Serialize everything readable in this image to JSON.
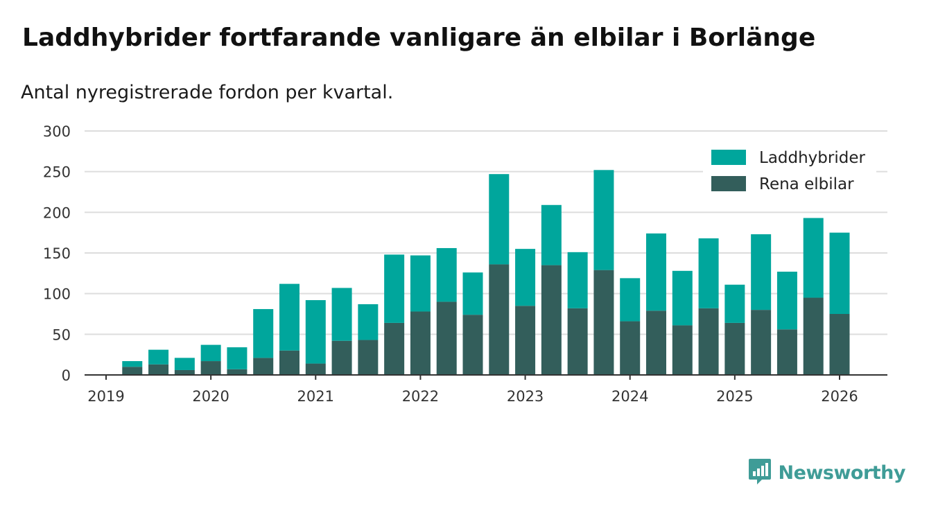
{
  "title": "Laddhybrider fortfarande vanligare än elbilar i Borlänge",
  "subtitle": "Antal nyregistrerade fordon per kvartal.",
  "brand": {
    "name": "Newsworthy",
    "icon": "newsworthy-logo-icon",
    "color": "#3f9c97"
  },
  "colors": {
    "laddhybrider": "#00a69c",
    "rena_elbilar": "#335e5b",
    "grid": "#dddddd",
    "axis": "#333333"
  },
  "chart_data": {
    "type": "bar",
    "stacked": true,
    "title": "Laddhybrider fortfarande vanligare än elbilar i Borlänge",
    "subtitle": "Antal nyregistrerade fordon per kvartal.",
    "xlabel": "",
    "ylabel": "",
    "ylim": [
      0,
      300
    ],
    "yticks": [
      0,
      50,
      100,
      150,
      200,
      250,
      300
    ],
    "xticks": [
      "2019",
      "2020",
      "2021",
      "2022",
      "2023",
      "2024",
      "2025",
      "2026"
    ],
    "legend_position": "top-right",
    "grid": true,
    "categories": [
      "2019 Q2",
      "2019 Q3",
      "2019 Q4",
      "2020 Q1",
      "2020 Q2",
      "2020 Q3",
      "2020 Q4",
      "2021 Q1",
      "2021 Q2",
      "2021 Q3",
      "2021 Q4",
      "2022 Q1",
      "2022 Q2",
      "2022 Q3",
      "2022 Q4",
      "2023 Q1",
      "2023 Q2",
      "2023 Q3",
      "2023 Q4",
      "2024 Q1",
      "2024 Q2",
      "2024 Q3",
      "2024 Q4",
      "2025 Q1",
      "2025 Q2",
      "2025 Q3",
      "2025 Q4",
      "2026 Q1"
    ],
    "series": [
      {
        "name": "Rena elbilar",
        "values": [
          10,
          13,
          6,
          17,
          7,
          21,
          30,
          14,
          42,
          43,
          64,
          78,
          90,
          74,
          136,
          85,
          135,
          82,
          129,
          66,
          79,
          61,
          82,
          64,
          80,
          56,
          95,
          75
        ]
      },
      {
        "name": "Laddhybrider",
        "values": [
          7,
          18,
          15,
          20,
          27,
          60,
          82,
          78,
          65,
          44,
          84,
          69,
          66,
          52,
          111,
          70,
          74,
          69,
          123,
          53,
          95,
          67,
          86,
          47,
          93,
          71,
          98,
          100
        ]
      }
    ]
  }
}
